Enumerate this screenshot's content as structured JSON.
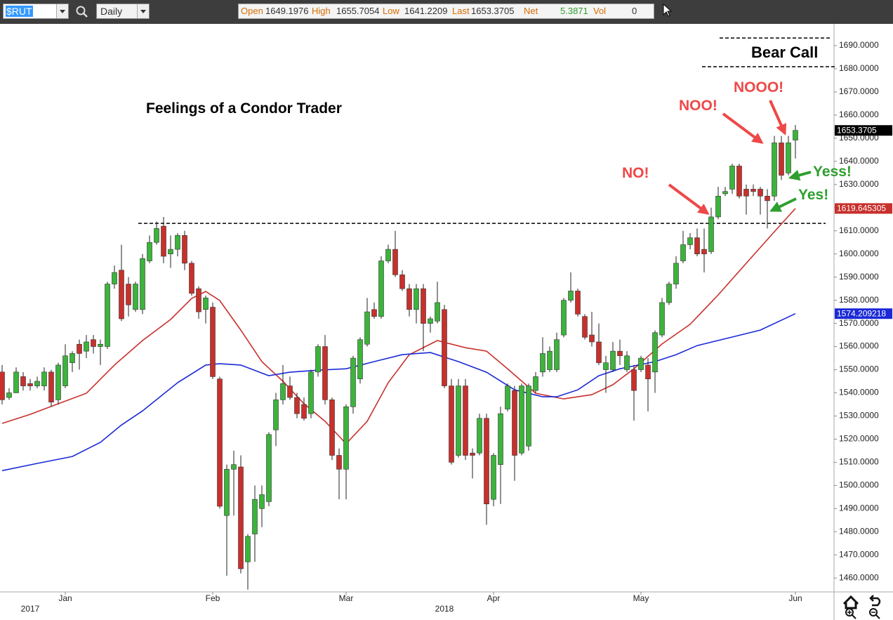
{
  "toolbar": {
    "symbol": "$RUT",
    "period": "Daily",
    "fields": [
      {
        "label": "Open",
        "value": "1649.1976"
      },
      {
        "label": "High",
        "value": "1655.7054"
      },
      {
        "label": "Low",
        "value": "1641.2209"
      },
      {
        "label": "Last",
        "value": "1653.3705"
      },
      {
        "label": "Net",
        "value": "5.3871"
      },
      {
        "label": "Vol",
        "value": "0"
      }
    ]
  },
  "chart_data": {
    "type": "candlestick",
    "title": "Feelings of a Condor Trader",
    "annotations": [
      "Bear Call",
      "NOOO!",
      "NOO!",
      "NO!",
      "Yess!",
      "Yes!"
    ],
    "up_color": "#3cb43c",
    "down_color": "#c8302c",
    "open": [
      1549,
      1538,
      1540,
      1547,
      1544,
      1543,
      1543,
      1549,
      1537,
      1543,
      1553,
      1561,
      1558,
      1563,
      1560,
      1560,
      1587,
      1593,
      1587,
      1576,
      1576,
      1597,
      1605,
      1612,
      1600,
      1602,
      1608,
      1596,
      1585,
      1576,
      1577,
      1546,
      1487,
      1507,
      1508,
      1467,
      1479,
      1490,
      1493,
      1524,
      1537,
      1543,
      1538,
      1535,
      1531,
      1549,
      1560,
      1537,
      1513,
      1507,
      1534,
      1546,
      1561,
      1576,
      1573,
      1597,
      1602,
      1591,
      1585,
      1576,
      1585,
      1570,
      1571,
      1576,
      1543,
      1513,
      1543,
      1514,
      1514,
      1529,
      1494,
      1509,
      1533,
      1541,
      1514,
      1517,
      1541,
      1549,
      1550,
      1550,
      1565,
      1580,
      1584,
      1573,
      1565,
      1562,
      1550,
      1550,
      1558,
      1550,
      1550,
      1550,
      1552,
      1549,
      1565,
      1579,
      1587,
      1597,
      1604,
      1607,
      1602,
      1601,
      1616,
      1626,
      1628,
      1638,
      1628,
      1628,
      1628,
      1625,
      1625,
      1648,
      1635,
      1649.1976
    ],
    "high": [
      1552,
      1542,
      1551,
      1549,
      1546,
      1547,
      1551,
      1550,
      1553,
      1561,
      1558,
      1563,
      1565,
      1565,
      1563,
      1588,
      1595,
      1604,
      1590,
      1588,
      1600,
      1608,
      1614,
      1616,
      1608,
      1609,
      1610,
      1597,
      1586,
      1582,
      1579,
      1547,
      1509,
      1515,
      1513,
      1479,
      1500,
      1500,
      1523,
      1540,
      1552,
      1547,
      1540,
      1538,
      1550,
      1561,
      1565,
      1538,
      1516,
      1535,
      1556,
      1564,
      1581,
      1579,
      1599,
      1604,
      1610,
      1593,
      1587,
      1587,
      1587,
      1573,
      1588,
      1578,
      1546,
      1546,
      1546,
      1516,
      1531,
      1531,
      1514,
      1534,
      1544,
      1543,
      1544,
      1544,
      1549,
      1564,
      1560,
      1566,
      1581,
      1592,
      1585,
      1574,
      1575,
      1570,
      1556,
      1562,
      1563,
      1558,
      1552,
      1556,
      1555,
      1567,
      1581,
      1588,
      1599,
      1610,
      1609,
      1611,
      1611,
      1620,
      1629,
      1629,
      1639,
      1639,
      1630,
      1630,
      1629,
      1628,
      1651,
      1651,
      1651,
      1655.7054
    ],
    "low": [
      1535,
      1537,
      1540,
      1541,
      1541,
      1542,
      1541,
      1534,
      1535,
      1542,
      1549,
      1550,
      1555,
      1557,
      1552,
      1559,
      1585,
      1571,
      1573,
      1575,
      1574,
      1596,
      1604,
      1596,
      1594,
      1599,
      1593,
      1582,
      1572,
      1570,
      1546,
      1490,
      1461,
      1487,
      1462,
      1455,
      1467,
      1482,
      1491,
      1517,
      1535,
      1537,
      1529,
      1528,
      1529,
      1547,
      1535,
      1511,
      1494,
      1494,
      1531,
      1544,
      1560,
      1572,
      1572,
      1596,
      1590,
      1584,
      1573,
      1570,
      1558,
      1566,
      1570,
      1542,
      1509,
      1512,
      1511,
      1503,
      1513,
      1483,
      1491,
      1492,
      1532,
      1502,
      1513,
      1515,
      1540,
      1547,
      1549,
      1549,
      1564,
      1579,
      1573,
      1563,
      1560,
      1552,
      1540,
      1549,
      1552,
      1549,
      1528,
      1549,
      1532,
      1540,
      1564,
      1578,
      1585,
      1596,
      1602,
      1599,
      1592,
      1600,
      1615,
      1625,
      1626,
      1624,
      1617,
      1625,
      1617,
      1611,
      1623,
      1632,
      1634,
      1641.2209
    ],
    "close": [
      1537,
      1540,
      1549,
      1543,
      1543,
      1545,
      1549,
      1536,
      1552,
      1556,
      1557,
      1557,
      1562,
      1560,
      1561,
      1587,
      1592,
      1572,
      1578,
      1587,
      1598,
      1605,
      1611,
      1599,
      1602,
      1608,
      1596,
      1583,
      1575,
      1581,
      1547,
      1491,
      1507,
      1509,
      1464,
      1478,
      1494,
      1496,
      1522,
      1537,
      1544,
      1538,
      1531,
      1529,
      1549,
      1560,
      1537,
      1513,
      1507,
      1534,
      1555,
      1563,
      1575,
      1573,
      1597,
      1602,
      1591,
      1585,
      1576,
      1585,
      1570,
      1572,
      1579,
      1543,
      1510,
      1543,
      1513,
      1513,
      1529,
      1492,
      1513,
      1531,
      1543,
      1513,
      1543,
      1543,
      1547,
      1557,
      1558,
      1563,
      1580,
      1584,
      1574,
      1564,
      1562,
      1553,
      1553,
      1558,
      1556,
      1556,
      1541,
      1555,
      1546,
      1566,
      1579,
      1587,
      1596,
      1604,
      1607,
      1600,
      1600,
      1616,
      1625,
      1627,
      1638,
      1625,
      1625,
      1627,
      1625,
      1623,
      1648,
      1634,
      1648,
      1653.3705
    ],
    "lines": [
      {
        "color": "#c8302c",
        "x": [
          0,
          4,
          8,
          12,
          16,
          20,
          24,
          27,
          29,
          31,
          34,
          37,
          40,
          43,
          46,
          49,
          52,
          55,
          58,
          62,
          66,
          69,
          72,
          76,
          80,
          84,
          87,
          90,
          94,
          98,
          102,
          106,
          110,
          113
        ],
        "values": [
          1526.8,
          1530.7,
          1535.3,
          1539.8,
          1552,
          1562.6,
          1571.7,
          1580.8,
          1583.8,
          1579.9,
          1567.1,
          1553.5,
          1545,
          1535.3,
          1527.7,
          1518,
          1527.7,
          1544.4,
          1556.5,
          1562.6,
          1559.5,
          1558,
          1550.4,
          1539.8,
          1537.4,
          1539.2,
          1543.5,
          1550.4,
          1561.1,
          1569.6,
          1582.3,
          1596,
          1609.6,
          1619.645305
        ]
      },
      {
        "color": "#1a2ad6",
        "x": [
          0,
          5,
          10,
          14,
          17,
          20,
          25,
          29,
          31,
          34,
          38,
          41,
          45,
          49,
          53,
          57,
          61,
          65,
          69,
          73,
          77,
          79,
          82,
          85,
          88,
          93,
          96,
          99,
          104,
          108,
          113
        ],
        "values": [
          1506.4,
          1509.5,
          1512.5,
          1518.6,
          1526.1,
          1532.2,
          1544.4,
          1552,
          1552.6,
          1552,
          1547.4,
          1548.9,
          1549.8,
          1550.4,
          1553.5,
          1556.5,
          1557.4,
          1553.5,
          1548.9,
          1541.3,
          1538.3,
          1538.3,
          1541.3,
          1547.4,
          1550.4,
          1553.5,
          1556.5,
          1560.4,
          1564.1,
          1567.1,
          1574.209218
        ]
      }
    ],
    "price_tags": [
      {
        "value": 1653.3705,
        "color": "#000000"
      },
      {
        "value": 1619.645305,
        "color": "#c8302c"
      },
      {
        "value": 1574.209218,
        "color": "#1a2ad6"
      }
    ],
    "levels": [
      1613.2,
      1693.3,
      1680.9
    ],
    "xlim": [
      -0.3,
      118.5
    ],
    "ylim": [
      1454,
      1699.4
    ],
    "xticks": [
      {
        "value": 9,
        "label": "Jan"
      },
      {
        "value": 30,
        "label": "Feb"
      },
      {
        "value": 49,
        "label": "Mar"
      },
      {
        "value": 70,
        "label": "Apr"
      },
      {
        "value": 91,
        "label": "May"
      },
      {
        "value": 113,
        "label": "Jun"
      }
    ],
    "year_labels": [
      {
        "value": 4,
        "label": "2017"
      },
      {
        "value": 63,
        "label": "2018"
      }
    ],
    "yticks": [
      {
        "value": 1460,
        "label": "1460.0000"
      },
      {
        "value": 1470,
        "label": "1470.0000"
      },
      {
        "value": 1480,
        "label": "1480.0000"
      },
      {
        "value": 1490,
        "label": "1490.0000"
      },
      {
        "value": 1500,
        "label": "1500.0000"
      },
      {
        "value": 1510,
        "label": "1510.0000"
      },
      {
        "value": 1520,
        "label": "1520.0000"
      },
      {
        "value": 1530,
        "label": "1530.0000"
      },
      {
        "value": 1540,
        "label": "1540.0000"
      },
      {
        "value": 1550,
        "label": "1550.0000"
      },
      {
        "value": 1560,
        "label": "1560.0000"
      },
      {
        "value": 1570,
        "label": "1570.0000"
      },
      {
        "value": 1580,
        "label": "1580.0000"
      },
      {
        "value": 1590,
        "label": "1590.0000"
      },
      {
        "value": 1600,
        "label": "1600.0000"
      },
      {
        "value": 1610,
        "label": "1610.0000"
      },
      {
        "value": 1620,
        "label": "1620.0000"
      },
      {
        "value": 1630,
        "label": "1630.0000"
      },
      {
        "value": 1640,
        "label": "1640.0000"
      },
      {
        "value": 1650,
        "label": "1650.0000"
      },
      {
        "value": 1660,
        "label": "1660.0000"
      },
      {
        "value": 1670,
        "label": "1670.0000"
      },
      {
        "value": 1680,
        "label": "1680.0000"
      },
      {
        "value": 1690,
        "label": "1690.0000"
      }
    ]
  }
}
